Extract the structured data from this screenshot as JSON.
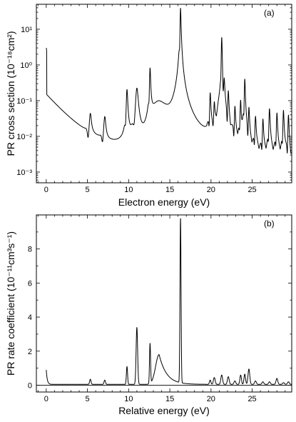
{
  "chart_data": [
    {
      "panel": "(a)",
      "type": "line",
      "xlabel": "Electron energy (eV)",
      "ylabel": "PR cross section (10⁻¹⁸cm²)",
      "xscale": "linear",
      "yscale": "log",
      "xlim": [
        -1.2,
        29.8
      ],
      "ylim": [
        0.0005,
        50
      ],
      "x_ticks": [
        0,
        5,
        10,
        15,
        20,
        25
      ],
      "x_tick_labels": [
        "0",
        "5",
        "10",
        "15",
        "20",
        "25"
      ],
      "y_ticks": [
        0.001,
        0.01,
        0.1,
        1,
        10
      ],
      "y_tick_labels": [
        "10⁻³",
        "10⁻²",
        "10⁻¹",
        "10⁰",
        "10¹"
      ],
      "grid": false,
      "series": [
        {
          "background": {
            "amplitude": 0.13,
            "scale": 0.021,
            "floor": 0.0015
          },
          "resonances": [
            {
              "x": 5.35,
              "peak": 0.032,
              "width": 0.12,
              "dip": true
            },
            {
              "x": 7.1,
              "peak": 0.028,
              "width": 0.12,
              "dip": true
            },
            {
              "x": 9.8,
              "peak": 0.2,
              "width": 0.08,
              "dip": true
            },
            {
              "x": 11.0,
              "peak": 0.22,
              "width": 0.15,
              "dip": true
            },
            {
              "x": 12.6,
              "peak": 0.8,
              "width": 0.06,
              "dip": true
            },
            {
              "x": 13.7,
              "peak": 0.08,
              "width": 1.1,
              "dip": false
            },
            {
              "x": 16.3,
              "peak": 40,
              "width": 0.05,
              "dip": true
            },
            {
              "x": 19.9,
              "peak": 0.15,
              "width": 0.06,
              "dip": true
            },
            {
              "x": 20.4,
              "peak": 0.06,
              "width": 0.06,
              "dip": true
            },
            {
              "x": 21.3,
              "peak": 5.5,
              "width": 0.05,
              "dip": true
            },
            {
              "x": 21.6,
              "peak": 0.3,
              "width": 0.06,
              "dip": true
            },
            {
              "x": 22.1,
              "peak": 0.15,
              "width": 0.06,
              "dip": true
            },
            {
              "x": 22.9,
              "peak": 0.06,
              "width": 0.06,
              "dip": true
            },
            {
              "x": 23.6,
              "peak": 0.1,
              "width": 0.06,
              "dip": true
            },
            {
              "x": 24.1,
              "peak": 0.5,
              "width": 0.05,
              "dip": true
            },
            {
              "x": 24.6,
              "peak": 0.06,
              "width": 0.06,
              "dip": true
            },
            {
              "x": 25.4,
              "peak": 0.04,
              "width": 0.06,
              "dip": true
            },
            {
              "x": 26.3,
              "peak": 0.03,
              "width": 0.06,
              "dip": true
            },
            {
              "x": 27.1,
              "peak": 0.07,
              "width": 0.06,
              "dip": true
            },
            {
              "x": 28.0,
              "peak": 0.05,
              "width": 0.06,
              "dip": true
            },
            {
              "x": 28.8,
              "peak": 0.06,
              "width": 0.06,
              "dip": true
            },
            {
              "x": 29.4,
              "peak": 0.035,
              "width": 0.06,
              "dip": true
            }
          ]
        }
      ]
    },
    {
      "panel": "(b)",
      "type": "line",
      "xlabel": "Relative energy (eV)",
      "ylabel": "PR rate coefficient (10⁻¹¹cm³s⁻¹)",
      "xscale": "linear",
      "yscale": "linear",
      "xlim": [
        -1.2,
        29.8
      ],
      "ylim": [
        -0.4,
        10
      ],
      "x_ticks": [
        0,
        5,
        10,
        15,
        20,
        25
      ],
      "x_tick_labels": [
        "0",
        "5",
        "10",
        "15",
        "20",
        "25"
      ],
      "y_ticks": [
        0,
        2,
        4,
        6,
        8
      ],
      "y_tick_labels": [
        "0",
        "2",
        "4",
        "6",
        "8"
      ],
      "grid": false,
      "series": [
        {
          "start_value": 0.85,
          "baseline": 0.05,
          "peaks": [
            {
              "x": 5.35,
              "y": 0.3,
              "width": 0.12
            },
            {
              "x": 7.1,
              "y": 0.25,
              "width": 0.12
            },
            {
              "x": 9.8,
              "y": 1.05,
              "width": 0.1
            },
            {
              "x": 11.0,
              "y": 3.35,
              "width": 0.13
            },
            {
              "x": 12.6,
              "y": 2.35,
              "width": 0.09
            },
            {
              "x": 13.7,
              "y": 1.75,
              "width": 0.6
            },
            {
              "x": 16.3,
              "y": 9.7,
              "width": 0.09
            },
            {
              "x": 19.9,
              "y": 0.25,
              "width": 0.12
            },
            {
              "x": 20.4,
              "y": 0.4,
              "width": 0.15
            },
            {
              "x": 21.3,
              "y": 0.55,
              "width": 0.15
            },
            {
              "x": 22.1,
              "y": 0.45,
              "width": 0.15
            },
            {
              "x": 22.9,
              "y": 0.2,
              "width": 0.15
            },
            {
              "x": 23.6,
              "y": 0.55,
              "width": 0.13
            },
            {
              "x": 24.1,
              "y": 0.6,
              "width": 0.13
            },
            {
              "x": 24.6,
              "y": 0.9,
              "width": 0.15
            },
            {
              "x": 25.4,
              "y": 0.2,
              "width": 0.15
            },
            {
              "x": 26.3,
              "y": 0.15,
              "width": 0.15
            },
            {
              "x": 27.1,
              "y": 0.15,
              "width": 0.15
            },
            {
              "x": 28.0,
              "y": 0.35,
              "width": 0.15
            },
            {
              "x": 28.8,
              "y": 0.1,
              "width": 0.15
            },
            {
              "x": 29.4,
              "y": 0.15,
              "width": 0.15
            }
          ]
        }
      ]
    }
  ]
}
